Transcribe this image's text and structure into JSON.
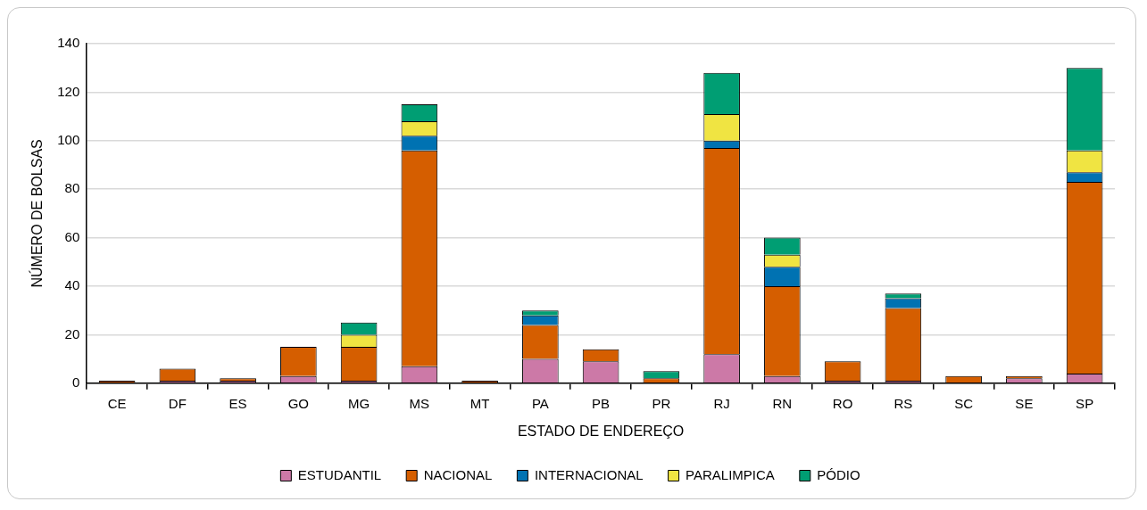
{
  "chart_data": {
    "type": "bar",
    "xlabel": "ESTADO DE ENDEREÇO",
    "ylabel": "NÚMERO DE BOLSAS",
    "categories": [
      "CE",
      "DF",
      "ES",
      "GO",
      "MG",
      "MS",
      "MT",
      "PA",
      "PB",
      "PR",
      "RJ",
      "RN",
      "RO",
      "RS",
      "SC",
      "SE",
      "SP"
    ],
    "stacked": true,
    "ylim": [
      0,
      140
    ],
    "yticks": [
      0,
      20,
      40,
      60,
      80,
      100,
      120,
      140
    ],
    "grid": "y",
    "legend": "bottom",
    "series": [
      {
        "name": "ESTUDANTIL",
        "color": "#cc79a7",
        "values": [
          0,
          1,
          1,
          3,
          1,
          7,
          0,
          10,
          9,
          0,
          12,
          3,
          1,
          1,
          0,
          2,
          4
        ]
      },
      {
        "name": "NACIONAL",
        "color": "#d55e00",
        "values": [
          1,
          5,
          1,
          12,
          14,
          89,
          1,
          14,
          5,
          2,
          85,
          37,
          8,
          30,
          3,
          1,
          79
        ]
      },
      {
        "name": "INTERNACIONAL",
        "color": "#0072b2",
        "values": [
          0,
          0,
          0,
          0,
          0,
          6,
          0,
          4,
          0,
          0,
          3,
          8,
          0,
          4,
          0,
          0,
          4
        ]
      },
      {
        "name": "PARALIMPICA",
        "color": "#f0e442",
        "values": [
          0,
          0,
          0,
          0,
          5,
          6,
          0,
          0,
          0,
          0,
          11,
          5,
          0,
          0,
          0,
          0,
          9
        ]
      },
      {
        "name": "PÓDIO",
        "color": "#009e73",
        "values": [
          0,
          0,
          0,
          0,
          5,
          7,
          0,
          2,
          0,
          3,
          17,
          7,
          0,
          2,
          0,
          0,
          34
        ]
      }
    ]
  }
}
